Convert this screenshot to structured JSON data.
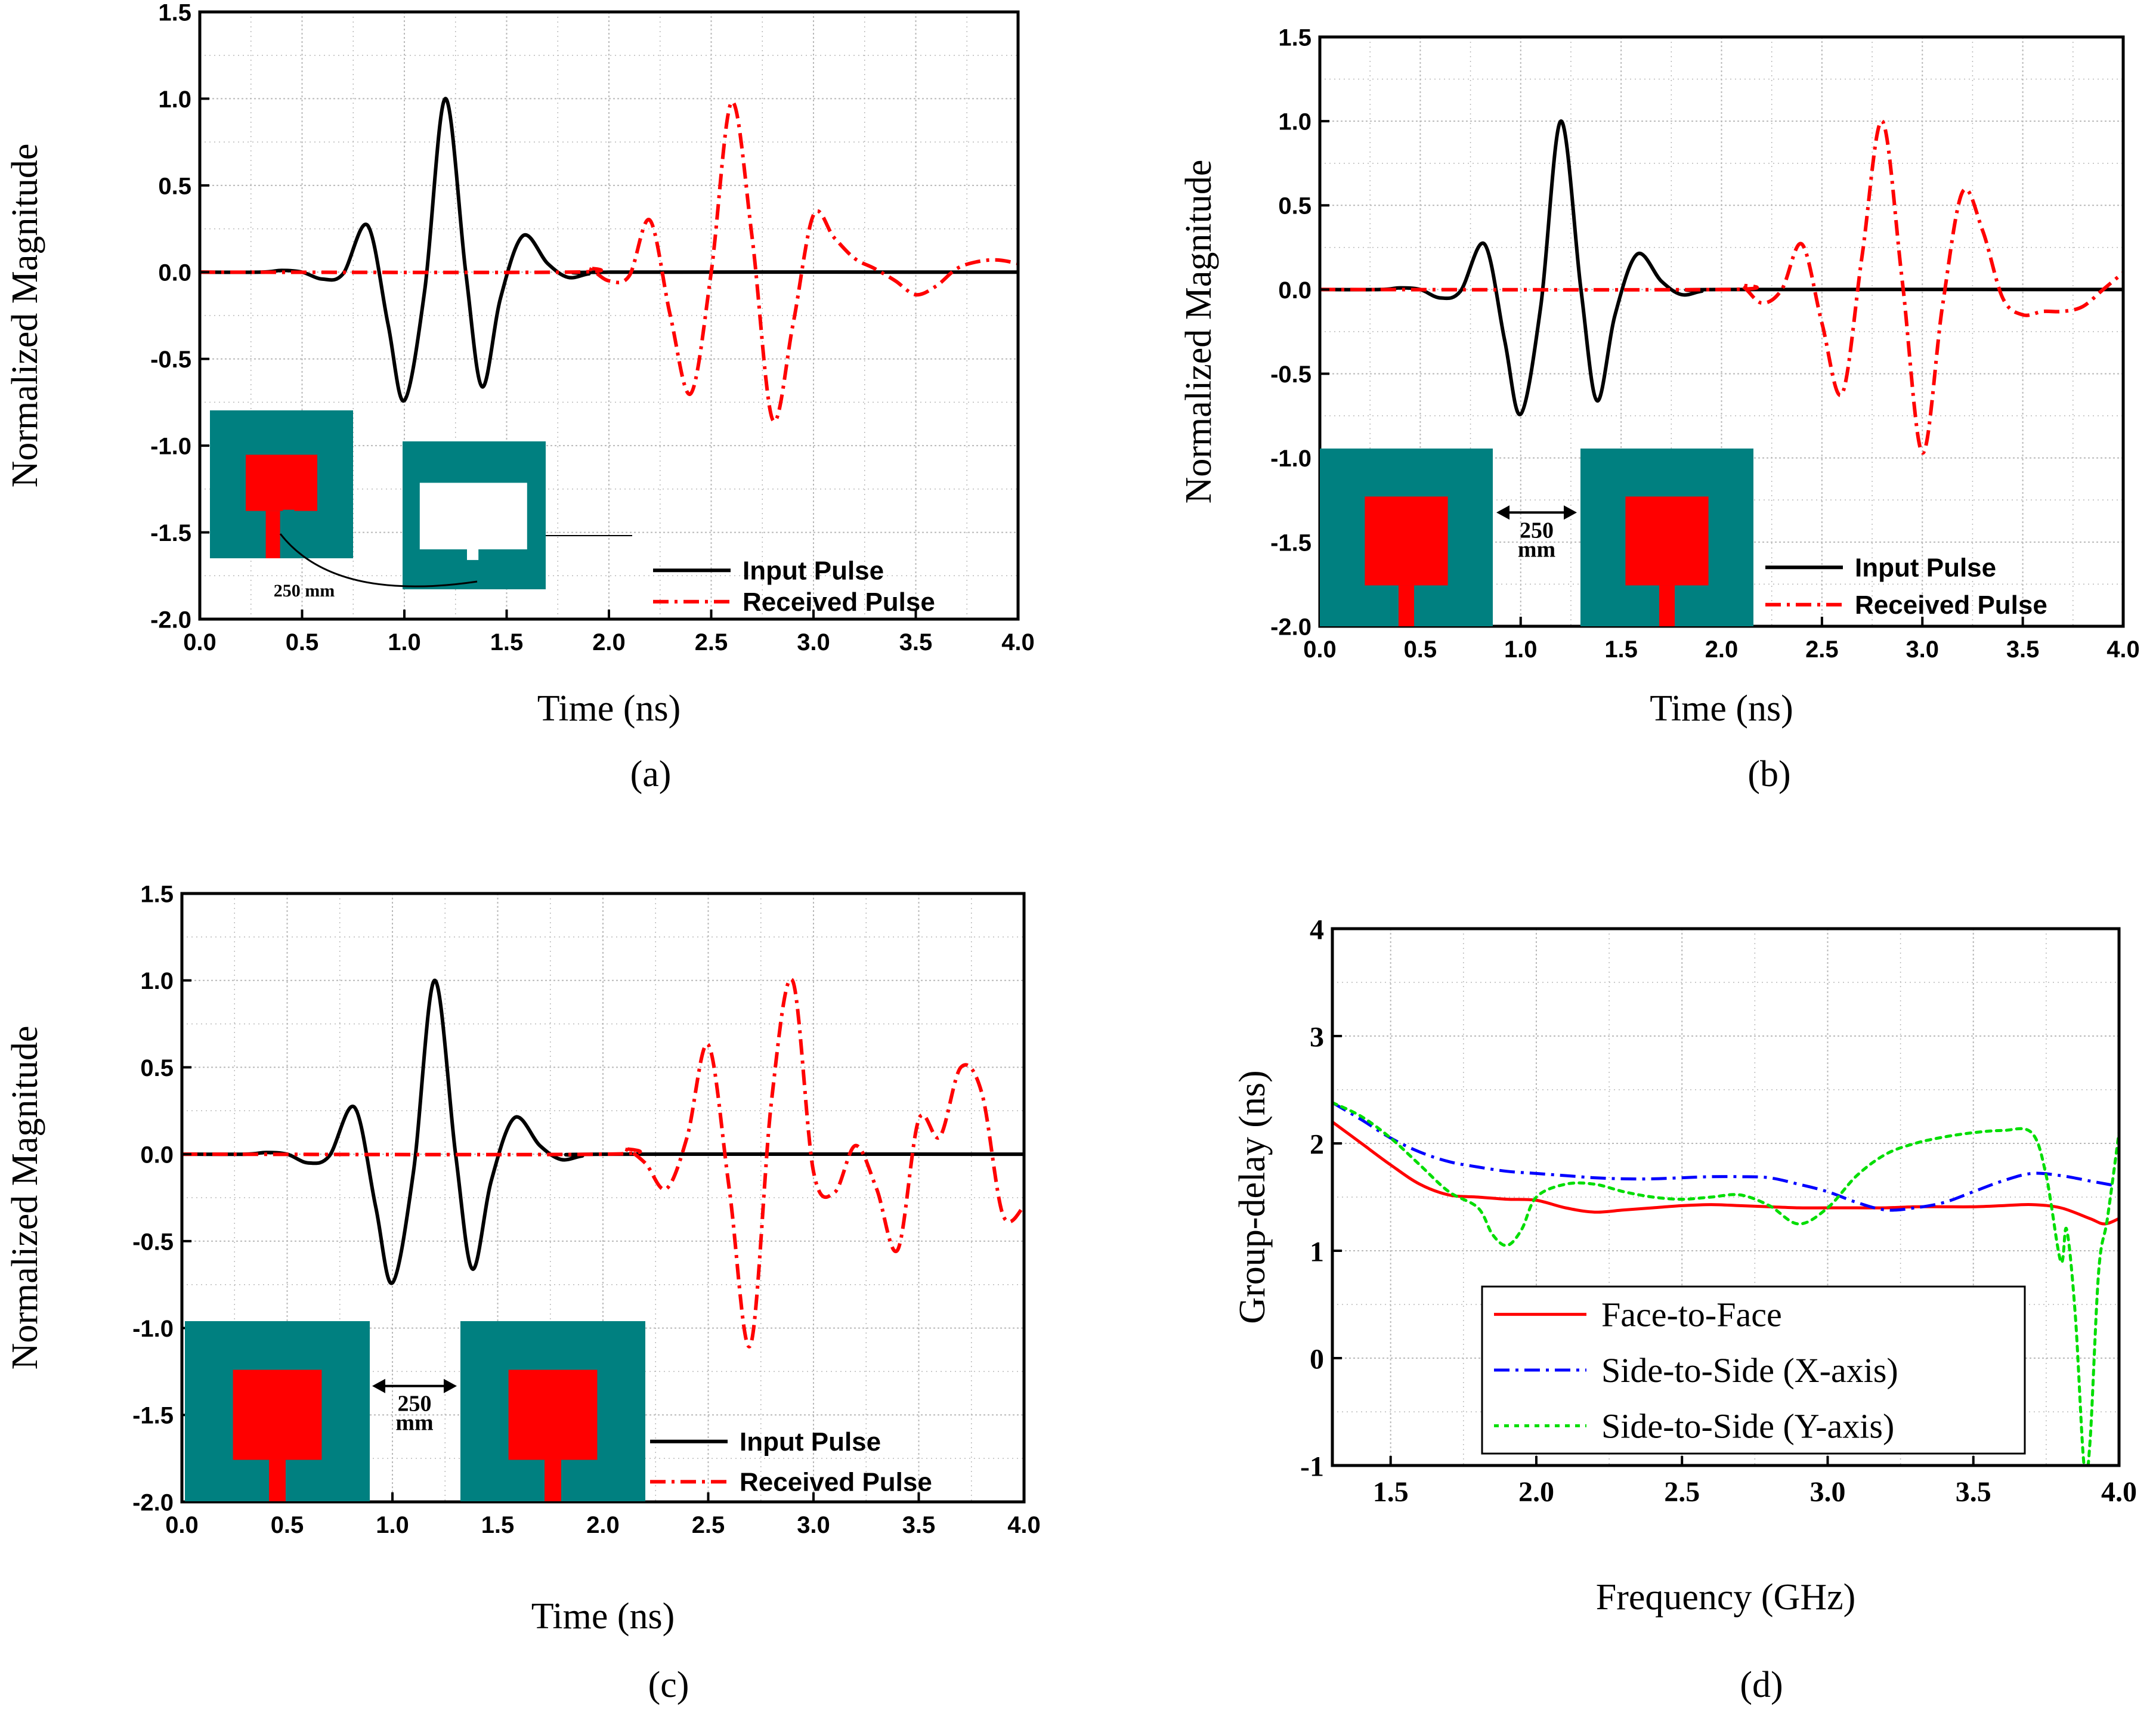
{
  "colors": {
    "input": "#000000",
    "received": "#ff0000",
    "face": "#ff0000",
    "sideX": "#0000ff",
    "sideY": "#00dd00",
    "board": "#008080",
    "patch": "#ff0000",
    "grid": "#b9b9b9"
  },
  "panels": [
    {
      "caption": "(a)",
      "antennas": {
        "type": "rotated",
        "distance": "250 mm"
      },
      "chart_data": {
        "type": "line",
        "xlabel": "Time (ns)",
        "ylabel": "Normalized Magnitude",
        "xlim": [
          0,
          4
        ],
        "ylim": [
          -2,
          1.5
        ],
        "xticks": [
          "0.0",
          "0.5",
          "1.0",
          "1.5",
          "2.0",
          "2.5",
          "3.0",
          "3.5",
          "4.0"
        ],
        "yticks": [
          "-2.0",
          "-1.5",
          "-1.0",
          "-0.5",
          "0.0",
          "0.5",
          "1.0",
          "1.5"
        ],
        "grid": true,
        "legend": "bottom-right",
        "series": [
          {
            "name": "Input Pulse",
            "style": "solid",
            "x": [
              0,
              0.3,
              0.4,
              0.5,
              0.6,
              0.7,
              0.82,
              0.92,
              1.0,
              1.1,
              1.2,
              1.3,
              1.38,
              1.47,
              1.58,
              1.7,
              1.8,
              1.9,
              2.0,
              4.0
            ],
            "y": [
              0,
              0,
              0.01,
              0.0,
              -0.04,
              -0.01,
              0.27,
              -0.3,
              -0.74,
              -0.1,
              1.0,
              0.0,
              -0.66,
              -0.15,
              0.21,
              0.05,
              -0.03,
              -0.01,
              0,
              0
            ]
          },
          {
            "name": "Received Pulse",
            "style": "dashdot",
            "x": [
              0,
              1.8,
              1.9,
              2.0,
              2.1,
              2.2,
              2.3,
              2.4,
              2.5,
              2.6,
              2.7,
              2.8,
              2.9,
              3.0,
              3.1,
              3.2,
              3.3,
              3.4,
              3.5,
              3.6,
              3.7,
              3.8,
              3.9,
              4.0
            ],
            "y": [
              0,
              0,
              0.02,
              -0.05,
              -0.02,
              0.3,
              -0.25,
              -0.7,
              0.0,
              0.98,
              0.2,
              -0.85,
              -0.3,
              0.33,
              0.2,
              0.08,
              0.02,
              -0.05,
              -0.13,
              -0.08,
              0.02,
              0.06,
              0.07,
              0.05
            ]
          }
        ]
      }
    },
    {
      "caption": "(b)",
      "antennas": {
        "type": "same",
        "distance": "250 mm"
      },
      "chart_data": {
        "type": "line",
        "xlabel": "Time (ns)",
        "ylabel": "Normalized Magnitude",
        "xlim": [
          0,
          4
        ],
        "ylim": [
          -2,
          1.5
        ],
        "xticks": [
          "0.0",
          "0.5",
          "1.0",
          "1.5",
          "2.0",
          "2.5",
          "3.0",
          "3.5",
          "4.0"
        ],
        "yticks": [
          "-2.0",
          "-1.5",
          "-1.0",
          "-0.5",
          "0.0",
          "0.5",
          "1.0",
          "1.5"
        ],
        "grid": true,
        "legend": "bottom-right",
        "series": [
          {
            "name": "Input Pulse",
            "style": "solid",
            "x": [
              0,
              0.3,
              0.4,
              0.5,
              0.6,
              0.7,
              0.82,
              0.92,
              1.0,
              1.1,
              1.2,
              1.3,
              1.38,
              1.47,
              1.58,
              1.7,
              1.8,
              1.9,
              2.0,
              4.0
            ],
            "y": [
              0,
              0,
              0.01,
              0.0,
              -0.05,
              -0.01,
              0.27,
              -0.3,
              -0.74,
              -0.1,
              1.0,
              0.0,
              -0.66,
              -0.15,
              0.21,
              0.05,
              -0.03,
              -0.01,
              0,
              0
            ]
          },
          {
            "name": "Received Pulse",
            "style": "dashdot",
            "x": [
              0,
              2.0,
              2.1,
              2.2,
              2.3,
              2.4,
              2.5,
              2.6,
              2.7,
              2.8,
              2.9,
              3.0,
              3.1,
              3.2,
              3.3,
              3.4,
              3.5,
              3.6,
              3.7,
              3.8,
              3.9,
              4.0
            ],
            "y": [
              0,
              0,
              0.02,
              -0.08,
              0.0,
              0.27,
              -0.2,
              -0.62,
              0.2,
              1.0,
              0.05,
              -0.97,
              -0.1,
              0.58,
              0.35,
              -0.05,
              -0.15,
              -0.13,
              -0.13,
              -0.1,
              0.0,
              0.1
            ]
          }
        ]
      }
    },
    {
      "caption": "(c)",
      "antennas": {
        "type": "same",
        "distance": "250 mm"
      },
      "chart_data": {
        "type": "line",
        "xlabel": "Time (ns)",
        "ylabel": "Normalized Magnitude",
        "xlim": [
          0,
          4
        ],
        "ylim": [
          -2,
          1.5
        ],
        "xticks": [
          "0.0",
          "0.5",
          "1.0",
          "1.5",
          "2.0",
          "2.5",
          "3.0",
          "3.5",
          "4.0"
        ],
        "yticks": [
          "-2.0",
          "-1.5",
          "-1.0",
          "-0.5",
          "0.0",
          "0.5",
          "1.0",
          "1.5"
        ],
        "grid": true,
        "legend": "bottom-right",
        "series": [
          {
            "name": "Input Pulse",
            "style": "solid",
            "x": [
              0,
              0.3,
              0.4,
              0.5,
              0.6,
              0.7,
              0.82,
              0.92,
              1.0,
              1.1,
              1.2,
              1.3,
              1.38,
              1.47,
              1.58,
              1.7,
              1.8,
              1.9,
              2.0,
              4.0
            ],
            "y": [
              0,
              0,
              0.01,
              0.0,
              -0.05,
              -0.01,
              0.27,
              -0.3,
              -0.74,
              -0.1,
              1.0,
              0.0,
              -0.66,
              -0.15,
              0.21,
              0.05,
              -0.03,
              -0.01,
              0,
              0
            ]
          },
          {
            "name": "Received Pulse",
            "style": "dashdot",
            "x": [
              0,
              2.0,
              2.1,
              2.2,
              2.3,
              2.4,
              2.5,
              2.6,
              2.7,
              2.8,
              2.9,
              3.0,
              3.1,
              3.2,
              3.3,
              3.4,
              3.5,
              3.6,
              3.7,
              3.8,
              3.9,
              4.0
            ],
            "y": [
              0,
              0,
              0.03,
              -0.05,
              -0.2,
              0.1,
              0.63,
              -0.2,
              -1.1,
              0.3,
              1.0,
              -0.1,
              -0.22,
              0.05,
              -0.2,
              -0.55,
              0.2,
              0.1,
              0.5,
              0.35,
              -0.35,
              -0.3
            ]
          }
        ]
      }
    },
    {
      "caption": "(d)",
      "chart_data": {
        "type": "line",
        "xlabel": "Frequency (GHz)",
        "ylabel": "Group-delay (ns)",
        "xlim": [
          1.3,
          4.0
        ],
        "ylim": [
          -1,
          4
        ],
        "xticks": [
          "1.5",
          "2.0",
          "2.5",
          "3.0",
          "3.5",
          "4.0"
        ],
        "yticks": [
          "-1",
          "0",
          "1",
          "2",
          "3",
          "4"
        ],
        "grid": true,
        "legend": "bottom-center",
        "series": [
          {
            "name": "Face-to-Face",
            "style": "solid",
            "x": [
              1.3,
              1.4,
              1.5,
              1.6,
              1.7,
              1.8,
              1.9,
              2.0,
              2.1,
              2.2,
              2.3,
              2.4,
              2.5,
              2.6,
              2.7,
              2.8,
              2.9,
              3.0,
              3.1,
              3.2,
              3.3,
              3.4,
              3.5,
              3.6,
              3.7,
              3.8,
              3.9,
              3.95,
              4.0
            ],
            "y": [
              2.2,
              2.0,
              1.8,
              1.62,
              1.52,
              1.5,
              1.48,
              1.47,
              1.4,
              1.36,
              1.38,
              1.4,
              1.42,
              1.43,
              1.42,
              1.41,
              1.4,
              1.4,
              1.4,
              1.4,
              1.41,
              1.41,
              1.41,
              1.42,
              1.43,
              1.4,
              1.3,
              1.25,
              1.3
            ]
          },
          {
            "name": "Side-to-Side (X-axis)",
            "style": "dashdot",
            "x": [
              1.3,
              1.4,
              1.5,
              1.6,
              1.7,
              1.8,
              1.9,
              2.0,
              2.1,
              2.2,
              2.3,
              2.4,
              2.5,
              2.6,
              2.7,
              2.8,
              2.9,
              3.0,
              3.1,
              3.2,
              3.3,
              3.4,
              3.5,
              3.6,
              3.7,
              3.8,
              3.9,
              4.0
            ],
            "y": [
              2.38,
              2.22,
              2.05,
              1.92,
              1.83,
              1.78,
              1.74,
              1.72,
              1.7,
              1.68,
              1.67,
              1.67,
              1.68,
              1.69,
              1.69,
              1.68,
              1.62,
              1.55,
              1.45,
              1.38,
              1.4,
              1.45,
              1.55,
              1.65,
              1.72,
              1.7,
              1.65,
              1.6
            ]
          },
          {
            "name": "Side-to-Side (Y-axis)",
            "style": "dotted",
            "x": [
              1.3,
              1.4,
              1.5,
              1.6,
              1.7,
              1.8,
              1.85,
              1.9,
              1.95,
              2.0,
              2.1,
              2.2,
              2.3,
              2.4,
              2.5,
              2.6,
              2.7,
              2.8,
              2.9,
              3.0,
              3.1,
              3.2,
              3.3,
              3.4,
              3.5,
              3.6,
              3.7,
              3.75,
              3.8,
              3.82,
              3.85,
              3.88,
              3.9,
              3.93,
              3.96,
              4.0
            ],
            "y": [
              2.38,
              2.25,
              2.05,
              1.8,
              1.55,
              1.4,
              1.15,
              1.05,
              1.2,
              1.5,
              1.62,
              1.62,
              1.55,
              1.5,
              1.48,
              1.5,
              1.52,
              1.42,
              1.25,
              1.4,
              1.7,
              1.9,
              2.0,
              2.06,
              2.1,
              2.12,
              2.1,
              1.7,
              0.9,
              1.2,
              0.4,
              -1.0,
              -0.8,
              0.8,
              1.3,
              2.1
            ]
          }
        ]
      }
    }
  ]
}
